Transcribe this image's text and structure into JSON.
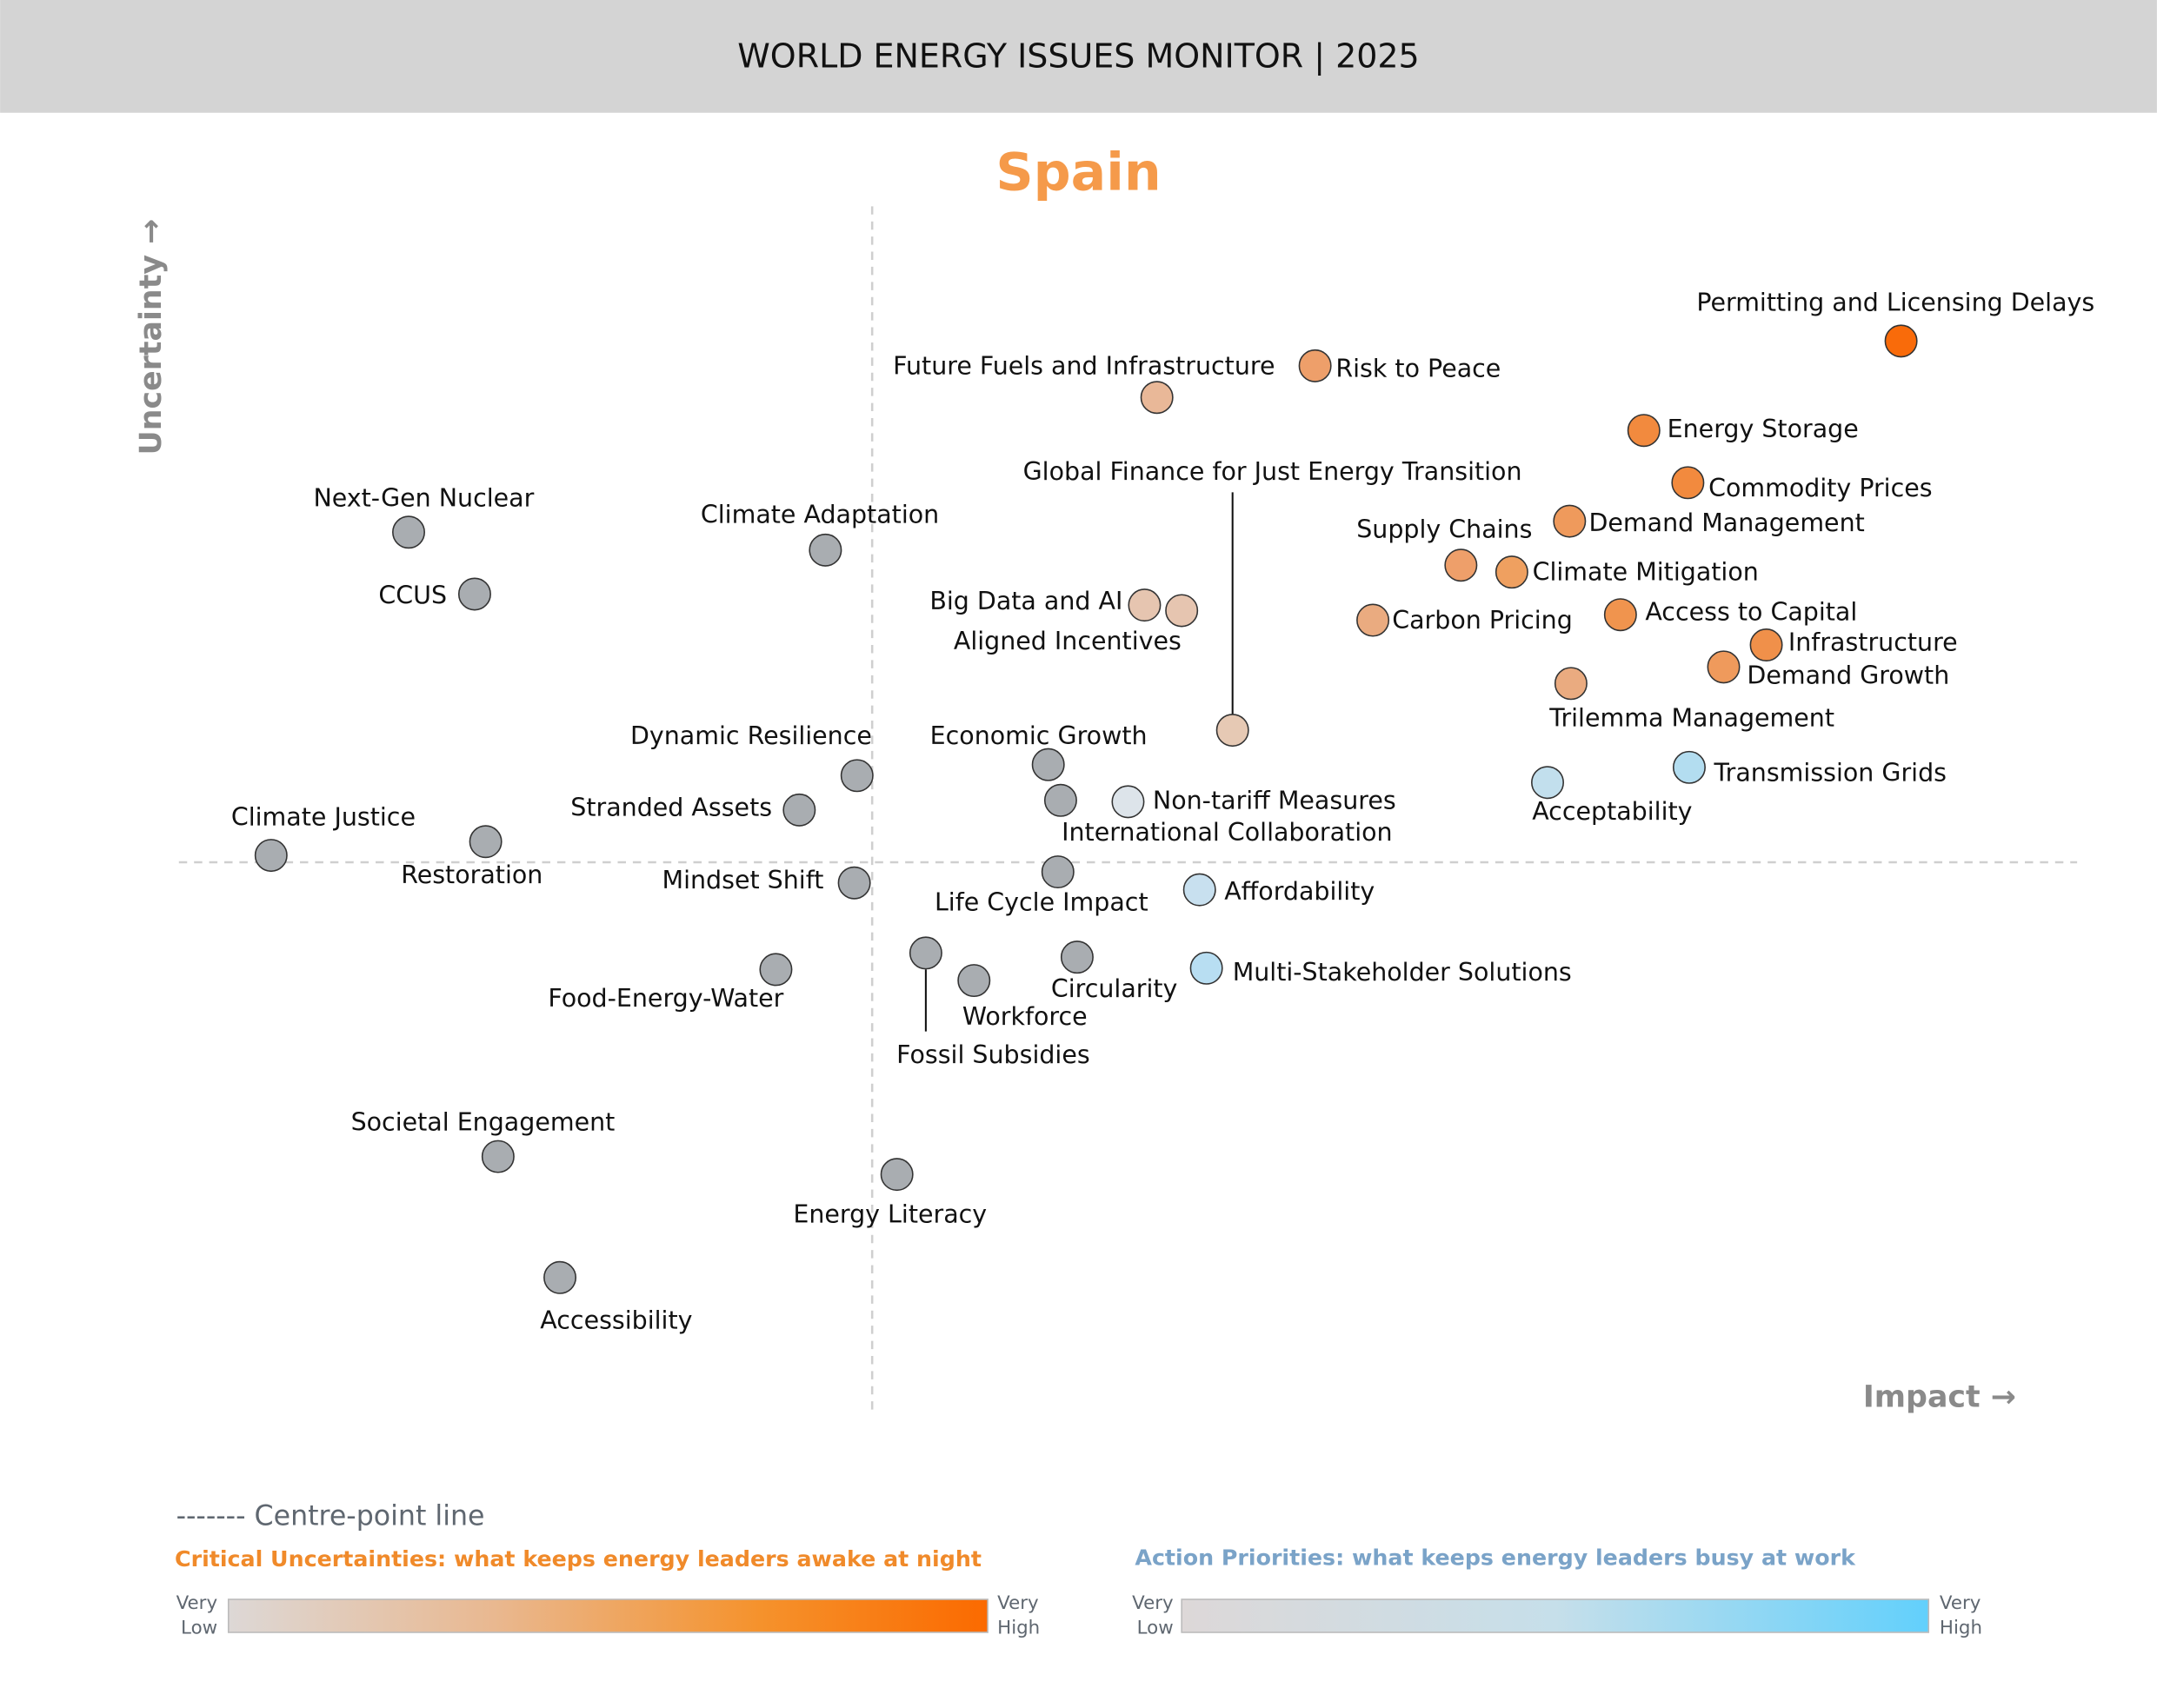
{
  "header": {
    "title": "WORLD ENERGY ISSUES MONITOR | 2025",
    "background": "#d4d4d4"
  },
  "chart_data": {
    "type": "scatter",
    "title": "Spain",
    "title_color": "#f59a4a",
    "xlabel": "Impact →",
    "ylabel": "Uncertainty →",
    "note": "x = relative impact, y = relative uncertainty; 0 = centre-point line (no numeric ticks printed)",
    "xlim": [
      -5.04,
      8.76
    ],
    "ylim": [
      -3.98,
      4.77
    ],
    "grid": false,
    "centre_lines": true,
    "points": [
      {
        "label": "Permitting and Licensing Delays",
        "x": 7.48,
        "y": 3.79,
        "color": "#f96b0a"
      },
      {
        "label": "Risk to Peace",
        "x": 3.22,
        "y": 3.61,
        "color": "#ee9f6a"
      },
      {
        "label": "Future Fuels and Infrastructure",
        "x": 2.07,
        "y": 3.38,
        "color": "#e9b898"
      },
      {
        "label": "Energy Storage",
        "x": 5.61,
        "y": 3.14,
        "color": "#f28a3e"
      },
      {
        "label": "Commodity Prices",
        "x": 5.93,
        "y": 2.76,
        "color": "#f28a3e"
      },
      {
        "label": "Global Finance for Just Energy Transition",
        "x": 2.62,
        "y": 0.96,
        "color": "#e6c9b4"
      },
      {
        "label": "Demand Management",
        "x": 5.07,
        "y": 2.48,
        "color": "#ef9a5c"
      },
      {
        "label": "Supply Chains",
        "x": 4.28,
        "y": 2.16,
        "color": "#ee9f6a"
      },
      {
        "label": "Climate Mitigation",
        "x": 4.65,
        "y": 2.11,
        "color": "#efa060"
      },
      {
        "label": "Big Data and AI",
        "x": 1.98,
        "y": 1.87,
        "color": "#e6c5b0"
      },
      {
        "label": "Aligned Incentives",
        "x": 2.25,
        "y": 1.83,
        "color": "#e6c5b0"
      },
      {
        "label": "Carbon Pricing",
        "x": 3.64,
        "y": 1.76,
        "color": "#eaab80"
      },
      {
        "label": "Access to Capital",
        "x": 5.44,
        "y": 1.8,
        "color": "#f0944e"
      },
      {
        "label": "Infrastructure",
        "x": 6.5,
        "y": 1.58,
        "color": "#f0904a"
      },
      {
        "label": "Demand Growth",
        "x": 6.19,
        "y": 1.42,
        "color": "#ef9a5c"
      },
      {
        "label": "Trilemma Management",
        "x": 5.08,
        "y": 1.3,
        "color": "#eaab80"
      },
      {
        "label": "Transmission Grids",
        "x": 5.94,
        "y": 0.69,
        "color": "#b3ddf0"
      },
      {
        "label": "Acceptability",
        "x": 4.91,
        "y": 0.58,
        "color": "#c2dfed"
      },
      {
        "label": "Economic Growth",
        "x": 1.28,
        "y": 0.71,
        "color": "#a9adb1"
      },
      {
        "label": "International Collaboration",
        "x": 1.37,
        "y": 0.45,
        "color": "#a9adb1"
      },
      {
        "label": "Non-tariff Measures",
        "x": 1.86,
        "y": 0.44,
        "color": "#dde4ea"
      },
      {
        "label": "Life Cycle Impact",
        "x": 1.35,
        "y": -0.07,
        "color": "#a9adb1"
      },
      {
        "label": "Affordability",
        "x": 2.38,
        "y": -0.2,
        "color": "#c8e0ef"
      },
      {
        "label": "Multi-Stakeholder Solutions",
        "x": 2.43,
        "y": -0.77,
        "color": "#b8def2"
      },
      {
        "label": "Circularity",
        "x": 1.49,
        "y": -0.69,
        "color": "#a9adb1"
      },
      {
        "label": "Workforce",
        "x": 0.74,
        "y": -0.86,
        "color": "#a9adb1"
      },
      {
        "label": "Fossil Subsidies",
        "x": 0.39,
        "y": -0.66,
        "color": "#a9adb1"
      },
      {
        "label": "Energy Literacy",
        "x": 0.18,
        "y": -2.27,
        "color": "#a9adb1"
      },
      {
        "label": "Accessibility",
        "x": -2.27,
        "y": -3.02,
        "color": "#a9adb1"
      },
      {
        "label": "Societal Engagement",
        "x": -2.72,
        "y": -2.14,
        "color": "#a9adb1"
      },
      {
        "label": "Food-Energy-Water",
        "x": -0.7,
        "y": -0.78,
        "color": "#a9adb1"
      },
      {
        "label": "Mindset Shift",
        "x": -0.13,
        "y": -0.15,
        "color": "#a9adb1"
      },
      {
        "label": "Restoration",
        "x": -2.81,
        "y": 0.15,
        "color": "#a9adb1"
      },
      {
        "label": "Climate Justice",
        "x": -4.37,
        "y": 0.05,
        "color": "#a9adb1"
      },
      {
        "label": "Stranded Assets",
        "x": -0.53,
        "y": 0.38,
        "color": "#a9adb1"
      },
      {
        "label": "Dynamic Resilience",
        "x": -0.11,
        "y": 0.63,
        "color": "#a9adb1"
      },
      {
        "label": "Climate Adaptation",
        "x": -0.34,
        "y": 2.27,
        "color": "#a9adb1"
      },
      {
        "label": "CCUS",
        "x": -2.89,
        "y": 1.95,
        "color": "#a9adb1"
      },
      {
        "label": "Next-Gen Nuclear",
        "x": -3.37,
        "y": 2.4,
        "color": "#a9adb1"
      }
    ]
  },
  "legend": {
    "centre_line": "------- Centre-point line",
    "critical": {
      "caption": "Critical Uncertainties: what keeps energy leaders awake at night",
      "color": "#f08a2a",
      "low": [
        "Very",
        "Low"
      ],
      "high": [
        "Very",
        "High"
      ],
      "gradient": [
        "#ddd8d6",
        "#e9b890",
        "#f5922c",
        "#fb6a00"
      ]
    },
    "action": {
      "caption": "Action Priorities: what keeps energy leaders busy at work",
      "color": "#7aa3c8",
      "low": [
        "Very",
        "Low"
      ],
      "high": [
        "Very",
        "High"
      ],
      "gradient": [
        "#ddd8d8",
        "#c6dfea",
        "#62d0fc"
      ]
    }
  }
}
